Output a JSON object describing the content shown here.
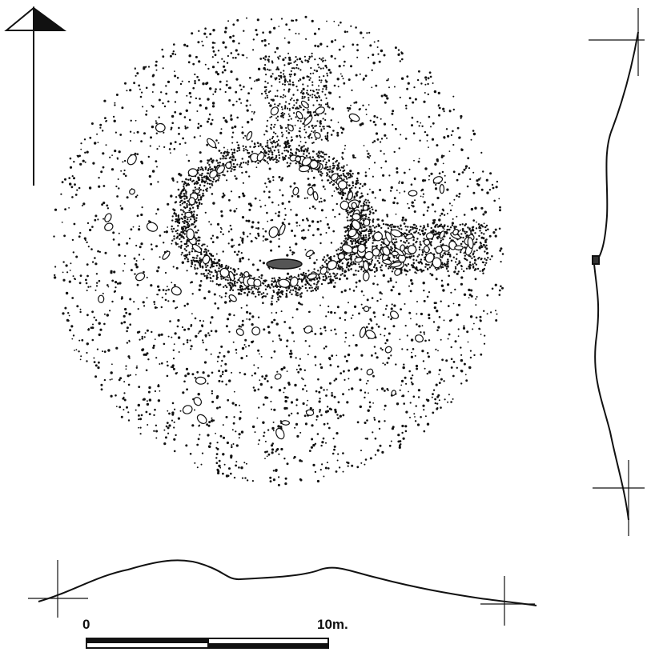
{
  "scale_bar": {
    "start_label": "0",
    "end_label": "10m."
  }
}
